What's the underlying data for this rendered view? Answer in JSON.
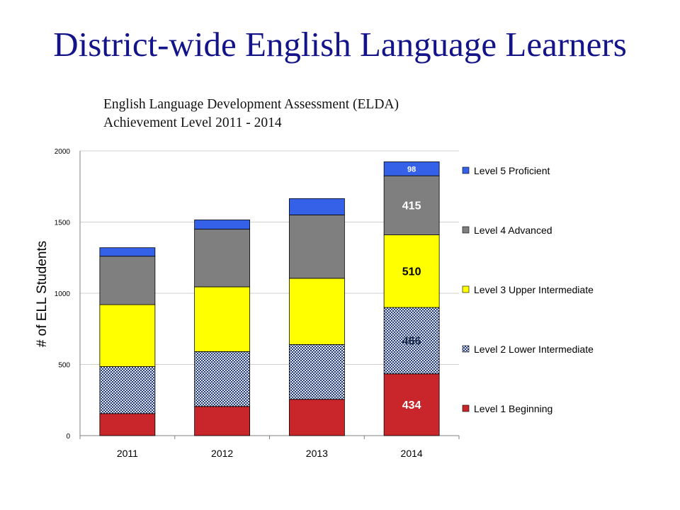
{
  "slide": {
    "title": "District-wide English Language Learners"
  },
  "chart_data": {
    "type": "bar",
    "stacked": true,
    "title_lines": [
      "English Language Development Assessment (ELDA)",
      "Achievement Level 2011 - 2014"
    ],
    "xlabel": "",
    "ylabel": "# of ELL Students",
    "ylim": [
      0,
      2000
    ],
    "yticks": [
      0,
      500,
      1000,
      1500,
      2000
    ],
    "grid": true,
    "legend_position": "right",
    "categories": [
      "2011",
      "2012",
      "2013",
      "2014"
    ],
    "series": [
      {
        "name": "Level 1 Beginning",
        "color": "#c8262a",
        "pattern": "solid",
        "values": [
          155,
          205,
          255,
          434
        ],
        "labels": [
          "",
          "",
          "",
          "434"
        ],
        "label_color": "#ffffff",
        "label_size": 16
      },
      {
        "name": "Level 2 Lower Intermediate",
        "color": "#9aa9c9",
        "pattern": "checker",
        "values": [
          330,
          385,
          385,
          466
        ],
        "labels": [
          "",
          "",
          "",
          "466"
        ],
        "label_color": "#1d2a4a",
        "label_size": 16
      },
      {
        "name": "Level 3 Upper Intermediate",
        "color": "#ffff00",
        "pattern": "solid",
        "values": [
          435,
          455,
          465,
          510
        ],
        "labels": [
          "",
          "",
          "",
          "510"
        ],
        "label_color": "#000000",
        "label_size": 16
      },
      {
        "name": "Level 4 Advanced",
        "color": "#7f7f7f",
        "pattern": "solid",
        "values": [
          340,
          405,
          445,
          415
        ],
        "labels": [
          "",
          "",
          "",
          "415"
        ],
        "label_color": "#ffffff",
        "label_size": 16
      },
      {
        "name": "Level 5 Proficient",
        "color": "#3560e8",
        "pattern": "solid",
        "values": [
          60,
          65,
          115,
          98
        ],
        "labels": [
          "",
          "",
          "",
          "98"
        ],
        "label_color": "#ffffff",
        "label_size": 11
      }
    ]
  }
}
